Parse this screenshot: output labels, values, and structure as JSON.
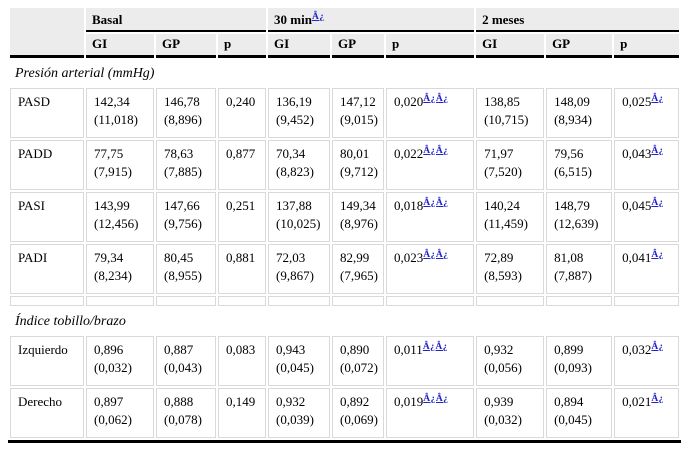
{
  "colors": {
    "header_bg": "#ececec",
    "grid_line": "#d9d9d9",
    "rule": "#000000",
    "footnote_link": "#2323cd"
  },
  "header": {
    "groups": [
      {
        "label": "Basal",
        "sup": ""
      },
      {
        "label": "30 min",
        "sup": "Â¿"
      },
      {
        "label": "2 meses",
        "sup": ""
      }
    ],
    "subheaders": [
      "GI",
      "GP",
      "p"
    ]
  },
  "sections": [
    {
      "title": "Presión arterial (mmHg)",
      "rows": [
        {
          "label": "PASD",
          "cells": [
            {
              "v": "142,34",
              "sd": "(11,018)"
            },
            {
              "v": "146,78",
              "sd": "(8,896)"
            },
            {
              "v": "0,240",
              "sup": ""
            },
            {
              "v": "136,19",
              "sd": "(9,452)"
            },
            {
              "v": "147,12",
              "sd": "(9,015)"
            },
            {
              "v": "0,020",
              "sup": "Â¿Â¿"
            },
            {
              "v": "138,85",
              "sd": "(10,715)"
            },
            {
              "v": "148,09",
              "sd": "(8,934)"
            },
            {
              "v": "0,025",
              "sup": "Â¿"
            }
          ]
        },
        {
          "label": "PADD",
          "cells": [
            {
              "v": "77,75",
              "sd": "(7,915)"
            },
            {
              "v": "78,63",
              "sd": "(7,885)"
            },
            {
              "v": "0,877",
              "sup": ""
            },
            {
              "v": "70,34",
              "sd": "(8,823)"
            },
            {
              "v": "80,01",
              "sd": "(9,712)"
            },
            {
              "v": "0,022",
              "sup": "Â¿Â¿"
            },
            {
              "v": "71,97",
              "sd": "(7,520)"
            },
            {
              "v": "79,56",
              "sd": "(6,515)"
            },
            {
              "v": "0,043",
              "sup": "Â¿"
            }
          ]
        },
        {
          "label": "PASI",
          "cells": [
            {
              "v": "143,99",
              "sd": "(12,456)"
            },
            {
              "v": "147,66",
              "sd": "(9,756)"
            },
            {
              "v": "0,251",
              "sup": ""
            },
            {
              "v": "137,88",
              "sd": "(10,025)"
            },
            {
              "v": "149,34",
              "sd": "(8,976)"
            },
            {
              "v": "0,018",
              "sup": "Â¿Â¿"
            },
            {
              "v": "140,24",
              "sd": "(11,459)"
            },
            {
              "v": "148,79",
              "sd": "(12,639)"
            },
            {
              "v": "0,045",
              "sup": "Â¿"
            }
          ]
        },
        {
          "label": "PADI",
          "cells": [
            {
              "v": "79,34",
              "sd": "(8,234)"
            },
            {
              "v": "80,45",
              "sd": "(8,955)"
            },
            {
              "v": "0,881",
              "sup": ""
            },
            {
              "v": "72,03",
              "sd": "(9,867)"
            },
            {
              "v": "82,99",
              "sd": "(7,965)"
            },
            {
              "v": "0,023",
              "sup": "Â¿Â¿"
            },
            {
              "v": "72,89",
              "sd": "(8,593)"
            },
            {
              "v": "81,08",
              "sd": "(7,887)"
            },
            {
              "v": "0,041",
              "sup": "Â¿"
            }
          ]
        }
      ]
    },
    {
      "title": "Índice tobillo/brazo",
      "rows": [
        {
          "label": "Izquierdo",
          "cells": [
            {
              "v": "0,896",
              "sd": "(0,032)"
            },
            {
              "v": "0,887",
              "sd": "(0,043)"
            },
            {
              "v": "0,083",
              "sup": ""
            },
            {
              "v": "0,943",
              "sd": "(0,045)"
            },
            {
              "v": "0,890",
              "sd": "(0,072)"
            },
            {
              "v": "0,011",
              "sup": "Â¿Â¿"
            },
            {
              "v": "0,932",
              "sd": "(0,056)"
            },
            {
              "v": "0,899",
              "sd": "(0,093)"
            },
            {
              "v": "0,032",
              "sup": "Â¿"
            }
          ]
        },
        {
          "label": "Derecho",
          "cells": [
            {
              "v": "0,897",
              "sd": "(0,062)"
            },
            {
              "v": "0,888",
              "sd": "(0,078)"
            },
            {
              "v": "0,149",
              "sup": ""
            },
            {
              "v": "0,932",
              "sd": "(0,039)"
            },
            {
              "v": "0,892",
              "sd": "(0,069)"
            },
            {
              "v": "0,019",
              "sup": "Â¿Â¿"
            },
            {
              "v": "0,939",
              "sd": "(0,032)"
            },
            {
              "v": "0,894",
              "sd": "(0,045)"
            },
            {
              "v": "0,021",
              "sup": "Â¿"
            }
          ]
        }
      ]
    }
  ]
}
